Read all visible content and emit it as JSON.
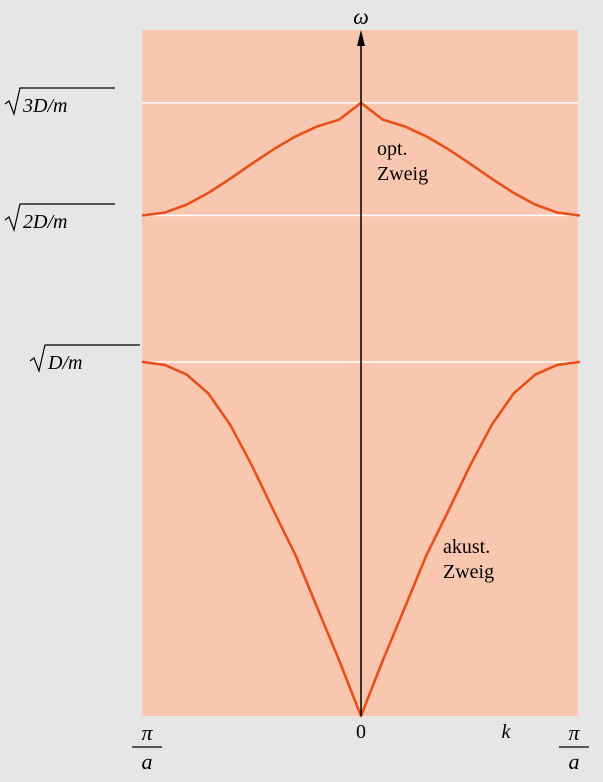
{
  "chart_data": {
    "type": "line",
    "title": "",
    "ylabel": "ω",
    "xlabel": "k",
    "xlim": [
      -1,
      1
    ],
    "x_tick_labels": {
      "left": {
        "num": "π",
        "den": "a"
      },
      "center": "0",
      "right": {
        "num": "π",
        "den": "a"
      }
    },
    "y_reference_levels": [
      {
        "label": "3D/m",
        "value": 1.7321
      },
      {
        "label": "2D/m",
        "value": 1.4142
      },
      {
        "label": "D/m",
        "value": 1.0
      }
    ],
    "ylim": [
      0,
      1.9
    ],
    "series": [
      {
        "name": "opt. Zweig",
        "label_lines": [
          "opt.",
          "Zweig"
        ],
        "x": [
          -1.0,
          -0.9,
          -0.8,
          -0.7,
          -0.6,
          -0.5,
          -0.4,
          -0.3,
          -0.2,
          -0.1,
          0.0,
          0.1,
          0.2,
          0.3,
          0.4,
          0.5,
          0.6,
          0.7,
          0.8,
          0.9,
          1.0
        ],
        "y": [
          1.4142,
          1.4222,
          1.4445,
          1.4778,
          1.5177,
          1.5603,
          1.6012,
          1.6372,
          1.6657,
          1.6847,
          1.7321,
          1.6847,
          1.6657,
          1.6372,
          1.6012,
          1.5603,
          1.5177,
          1.4778,
          1.4445,
          1.4222,
          1.4142
        ]
      },
      {
        "name": "akust. Zweig",
        "label_lines": [
          "akust.",
          "Zweig"
        ],
        "x": [
          -1.0,
          -0.9,
          -0.8,
          -0.7,
          -0.6,
          -0.5,
          -0.4,
          -0.3,
          -0.2,
          -0.1,
          0.0,
          0.1,
          0.2,
          0.3,
          0.4,
          0.5,
          0.6,
          0.7,
          0.8,
          0.9,
          1.0
        ],
        "y": [
          1.0,
          0.9918,
          0.9647,
          0.9109,
          0.8226,
          0.7071,
          0.5787,
          0.454,
          0.3048,
          0.1571,
          0.0,
          0.1571,
          0.3048,
          0.454,
          0.5787,
          0.7071,
          0.8226,
          0.9109,
          0.9647,
          0.9918,
          1.0
        ]
      }
    ],
    "grid": false,
    "colors": {
      "plot_background": "#f9c7b0",
      "page_background": "#e6e6e6",
      "curve": "#e8501a",
      "reference_line": "#ffffff",
      "text": "#000000"
    }
  }
}
